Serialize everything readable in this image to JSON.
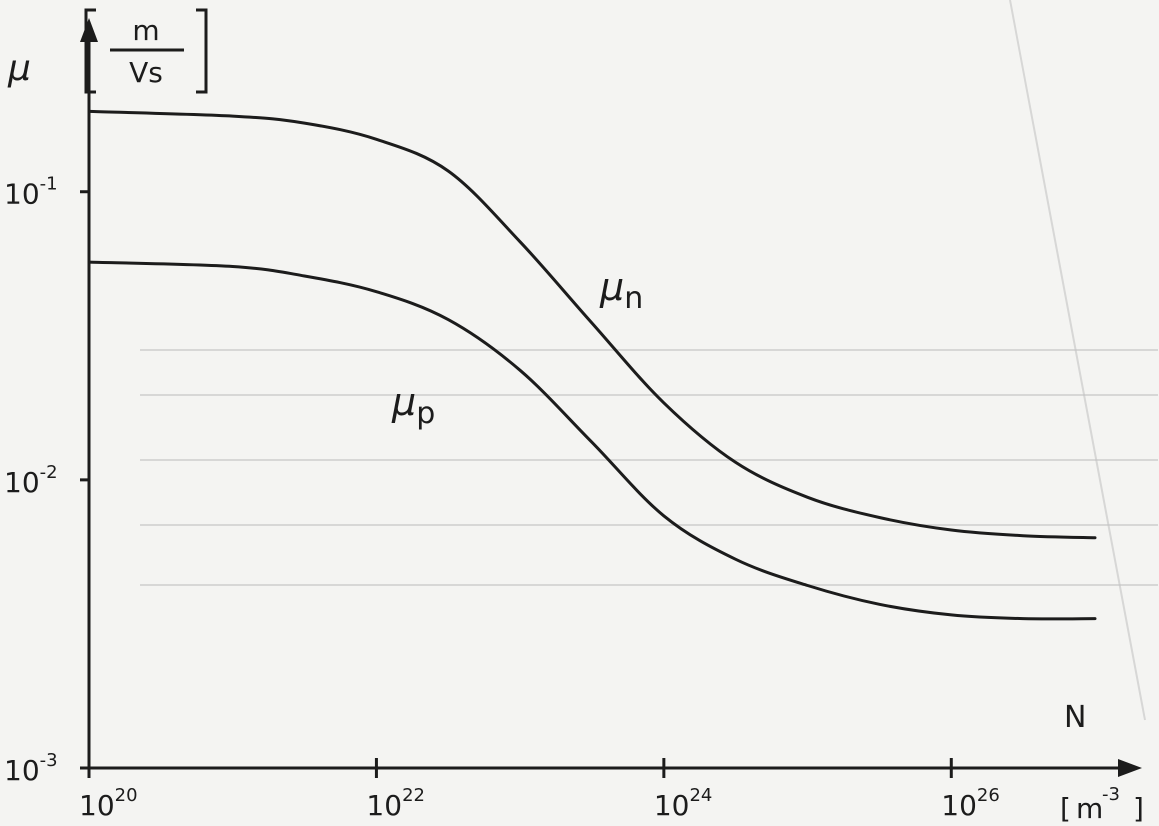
{
  "chart_data": {
    "type": "line",
    "x_scale": "log",
    "y_scale": "log",
    "xlim": [
      1e+20,
      1e+27
    ],
    "ylim": [
      0.001,
      0.2
    ],
    "x_ticks": [
      {
        "value": 1e+20,
        "base": "10",
        "exp": "20"
      },
      {
        "value": 1e+22,
        "base": "10",
        "exp": "22"
      },
      {
        "value": 1e+24,
        "base": "10",
        "exp": "24"
      },
      {
        "value": 1e+26,
        "base": "10",
        "exp": "26"
      }
    ],
    "y_ticks": [
      {
        "value": 0.1,
        "base": "10",
        "exp": "-1"
      },
      {
        "value": 0.01,
        "base": "10",
        "exp": "-2"
      },
      {
        "value": 0.001,
        "base": "10",
        "exp": "-3"
      }
    ],
    "xlabel": "N",
    "xunit": {
      "open": "[",
      "base": "m",
      "exp": "-3",
      "close": "]"
    },
    "ylabel": "μ",
    "yunit": {
      "numerator": "m",
      "denominator": "Vs"
    },
    "grid": false,
    "series": [
      {
        "name": "μn",
        "label_main": "μ",
        "label_sub": "n",
        "x": [
          1e+20,
          1e+21,
          3.16e+21,
          1e+22,
          3.16e+22,
          1e+23,
          3.16e+23,
          1e+24,
          3.16e+24,
          1e+25,
          3.16e+25,
          1e+26,
          3.16e+26,
          1e+27
        ],
        "y": [
          0.19,
          0.183,
          0.173,
          0.152,
          0.118,
          0.067,
          0.035,
          0.0185,
          0.0115,
          0.0087,
          0.0074,
          0.0067,
          0.0064,
          0.0063
        ]
      },
      {
        "name": "μp",
        "label_main": "μ",
        "label_sub": "p",
        "x": [
          1e+20,
          1e+21,
          3.16e+21,
          1e+22,
          3.16e+22,
          1e+23,
          3.16e+23,
          1e+24,
          3.16e+24,
          1e+25,
          3.16e+25,
          1e+26,
          3.16e+26,
          1e+27
        ],
        "y": [
          0.057,
          0.055,
          0.051,
          0.045,
          0.036,
          0.024,
          0.0135,
          0.0075,
          0.0053,
          0.0043,
          0.0037,
          0.0034,
          0.0033,
          0.0033
        ]
      }
    ]
  }
}
